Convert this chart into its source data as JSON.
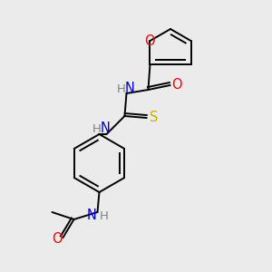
{
  "bg_color": "#ebebeb",
  "atom_colors": {
    "O": "#ff0000",
    "N": "#0000cd",
    "S": "#ccaa00",
    "C": "#000000",
    "H": "#808080"
  },
  "bond_color": "#000000",
  "font_size": 9.5,
  "fig_size": [
    3.0,
    3.0
  ],
  "dpi": 100
}
